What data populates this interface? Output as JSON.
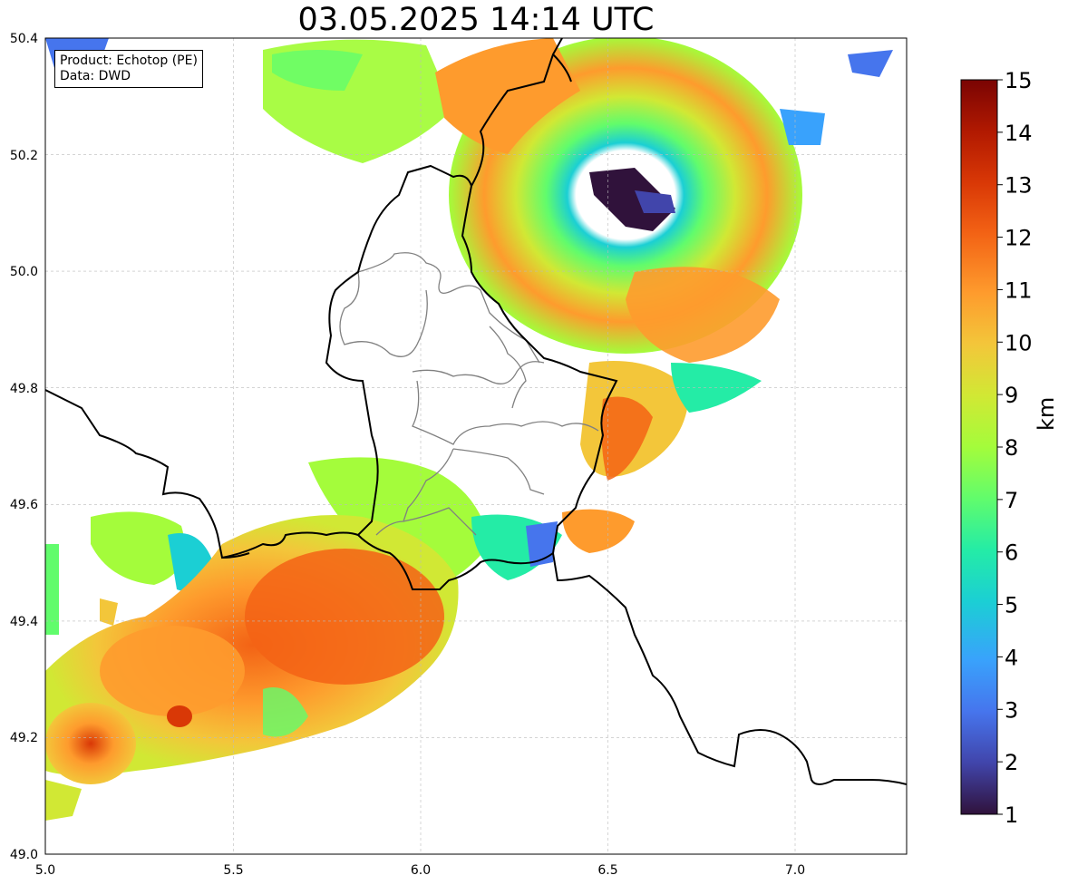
{
  "title": "03.05.2025 14:14 UTC",
  "infobox": {
    "product": "Product: Echotop (PE)",
    "source": "Data: DWD"
  },
  "map": {
    "lon_range": [
      5.0,
      7.3
    ],
    "lat_range": [
      49.0,
      50.4
    ],
    "x_ticks": [
      "5.0",
      "5.5",
      "6.0",
      "6.5",
      "7.0"
    ],
    "y_ticks": [
      "49.0",
      "49.2",
      "49.4",
      "49.6",
      "49.8",
      "50.0",
      "50.2",
      "50.4"
    ],
    "grid": true
  },
  "colorbar": {
    "unit_label": "km",
    "min": 1,
    "max": 15,
    "ticks": [
      "1",
      "2",
      "3",
      "4",
      "5",
      "6",
      "7",
      "8",
      "9",
      "10",
      "11",
      "12",
      "13",
      "14",
      "15"
    ],
    "colormap": "turbo"
  },
  "colors": {
    "country_border": "#000000",
    "canton_border": "#808080",
    "grid": "#bbbbbb"
  }
}
